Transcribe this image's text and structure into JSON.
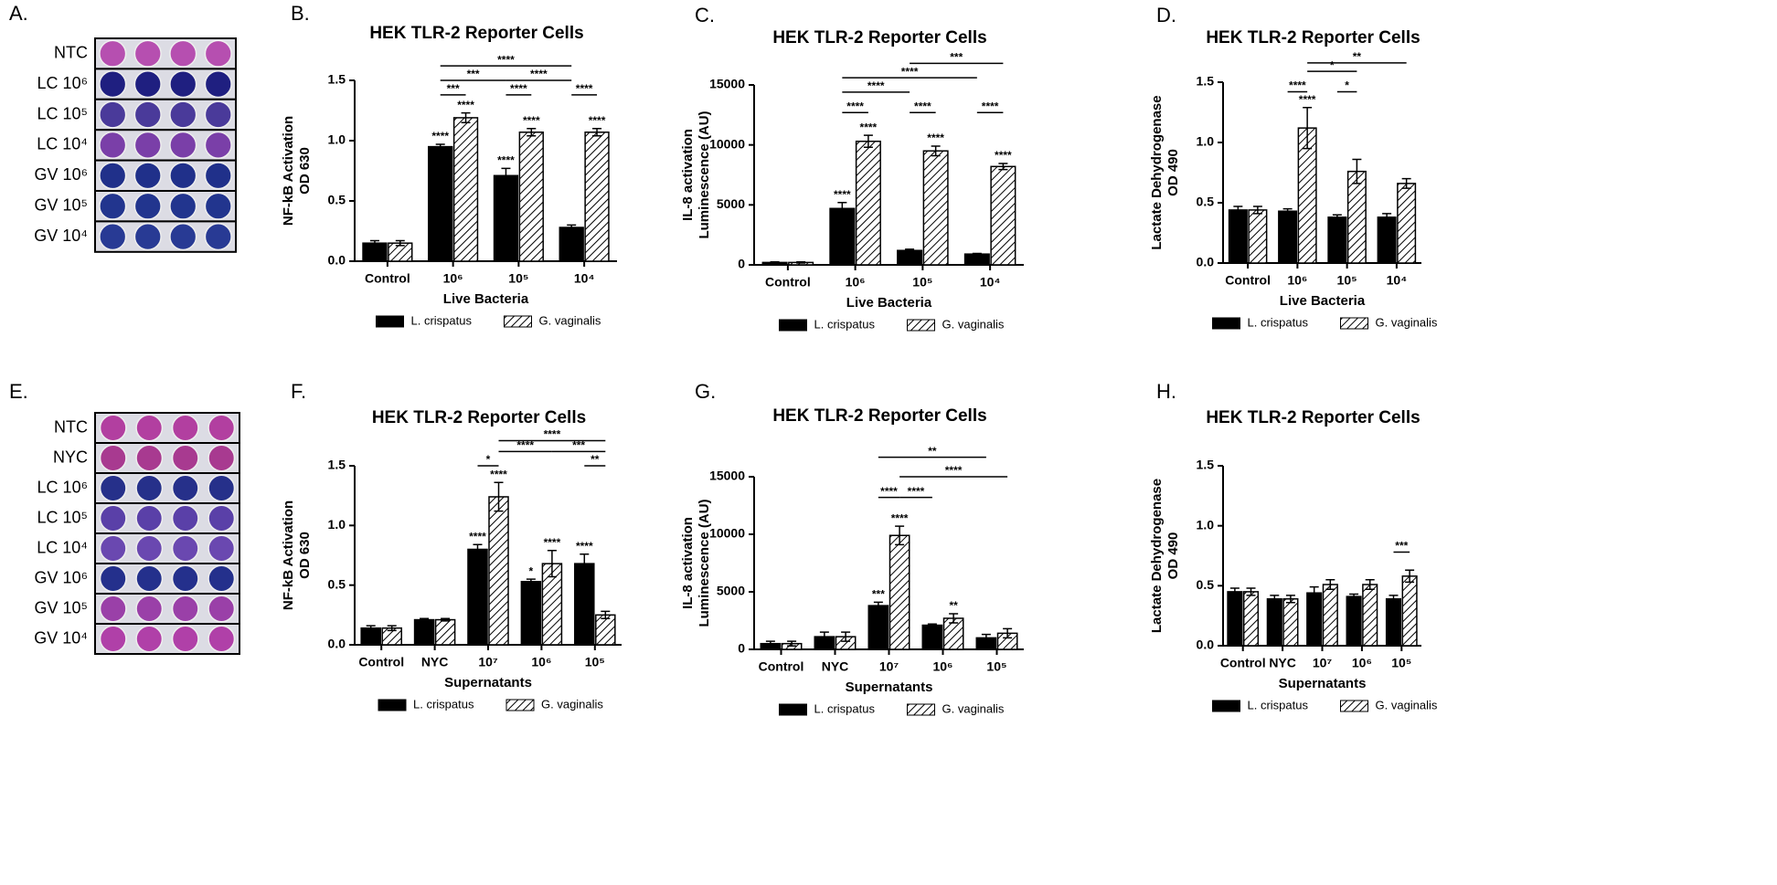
{
  "panel_letters": [
    "A.",
    "B.",
    "C.",
    "D.",
    "E.",
    "F.",
    "G.",
    "H."
  ],
  "well_panels": [
    {
      "rows": [
        {
          "label": "NTC",
          "color": "#b64fb0"
        },
        {
          "label": "LC 10⁶",
          "color": "#1f1f80"
        },
        {
          "label": "LC 10⁵",
          "color": "#4a3a9a"
        },
        {
          "label": "LC 10⁴",
          "color": "#7a3fa8"
        },
        {
          "label": "GV 10⁶",
          "color": "#20308a"
        },
        {
          "label": "GV 10⁵",
          "color": "#22358e"
        },
        {
          "label": "GV 10⁴",
          "color": "#283a94"
        }
      ]
    },
    {
      "rows": [
        {
          "label": "NTC",
          "color": "#b23fa0"
        },
        {
          "label": "NYC",
          "color": "#a83a90"
        },
        {
          "label": "LC 10⁶",
          "color": "#26308a"
        },
        {
          "label": "LC 10⁵",
          "color": "#5a40a8"
        },
        {
          "label": "LC 10⁴",
          "color": "#6a48b0"
        },
        {
          "label": "GV 10⁶",
          "color": "#24308c"
        },
        {
          "label": "GV 10⁵",
          "color": "#9a40a8"
        },
        {
          "label": "GV 10⁴",
          "color": "#b040a8"
        }
      ]
    }
  ],
  "chart_data": [
    {
      "type": "bar",
      "title": "HEK TLR-2 Reporter Cells",
      "xlabel": "Live Bacteria",
      "ylabel": [
        "NF-kB Activation",
        "OD 630"
      ],
      "categories": [
        "Control",
        "10⁶",
        "10⁵",
        "10⁴"
      ],
      "series": [
        {
          "name": "L. crispatus",
          "color": "#000000",
          "values": [
            0.15,
            0.95,
            0.71,
            0.28
          ],
          "errors": [
            0.02,
            0.02,
            0.06,
            0.02
          ],
          "stars": [
            null,
            "****",
            "****",
            null
          ]
        },
        {
          "name": "G. vaginalis",
          "color": "#ffffff",
          "hatch": true,
          "values": [
            0.15,
            1.19,
            1.07,
            1.07
          ],
          "errors": [
            0.02,
            0.04,
            0.03,
            0.03
          ],
          "stars": [
            null,
            "****",
            "****",
            "****"
          ]
        }
      ],
      "brackets": [
        {
          "text": "****",
          "y": 1.62,
          "from": [
            1,
            0
          ],
          "to": [
            3,
            0
          ]
        },
        {
          "text": "***",
          "y": 1.5,
          "from": [
            1,
            0
          ],
          "to": [
            2,
            0
          ]
        },
        {
          "text": "****",
          "y": 1.5,
          "from": [
            2,
            0
          ],
          "to": [
            3,
            0
          ]
        },
        {
          "text": "***",
          "y": 1.38,
          "from": [
            1,
            0
          ],
          "to": [
            1,
            1
          ]
        },
        {
          "text": "****",
          "y": 1.38,
          "from": [
            2,
            0
          ],
          "to": [
            2,
            1
          ]
        },
        {
          "text": "****",
          "y": 1.38,
          "from": [
            3,
            0
          ],
          "to": [
            3,
            1
          ]
        }
      ],
      "ylim": [
        0,
        1.5
      ],
      "yticks": [
        {
          "value": 0,
          "label": "0.0"
        },
        {
          "value": 0.5,
          "label": "0.5"
        },
        {
          "value": 1,
          "label": "1.0"
        },
        {
          "value": 1.5,
          "label": "1.5"
        }
      ]
    },
    {
      "type": "bar",
      "title": "HEK TLR-2 Reporter Cells",
      "xlabel": "Live Bacteria",
      "ylabel": [
        "IL-8 activation",
        "Luminescence (AU)"
      ],
      "categories": [
        "Control",
        "10⁶",
        "10⁵",
        "10⁴"
      ],
      "series": [
        {
          "name": "L. crispatus",
          "color": "#000000",
          "values": [
            200,
            4700,
            1200,
            900
          ],
          "errors": [
            50,
            500,
            100,
            50
          ],
          "stars": [
            null,
            "****",
            null,
            null
          ]
        },
        {
          "name": "G. vaginalis",
          "color": "#ffffff",
          "hatch": true,
          "values": [
            200,
            10300,
            9500,
            8200
          ],
          "errors": [
            50,
            500,
            400,
            250
          ],
          "stars": [
            null,
            "****",
            "****",
            "****"
          ]
        }
      ],
      "brackets": [
        {
          "text": "***",
          "y": 16800,
          "from": [
            2,
            0
          ],
          "to": [
            3,
            1
          ]
        },
        {
          "text": "****",
          "y": 15600,
          "from": [
            1,
            0
          ],
          "to": [
            3,
            0
          ]
        },
        {
          "text": "****",
          "y": 14400,
          "from": [
            1,
            0
          ],
          "to": [
            2,
            0
          ]
        },
        {
          "text": "****",
          "y": 12700,
          "from": [
            1,
            0
          ],
          "to": [
            1,
            1
          ]
        },
        {
          "text": "****",
          "y": 12700,
          "from": [
            2,
            0
          ],
          "to": [
            2,
            1
          ]
        },
        {
          "text": "****",
          "y": 12700,
          "from": [
            3,
            0
          ],
          "to": [
            3,
            1
          ]
        }
      ],
      "ylim": [
        0,
        15000
      ],
      "yticks": [
        0,
        5000,
        10000,
        15000
      ]
    },
    {
      "type": "bar",
      "title": "HEK TLR-2 Reporter Cells",
      "xlabel": "Live Bacteria",
      "ylabel": [
        "Lactate Dehydrogenase",
        "OD 490"
      ],
      "categories": [
        "Control",
        "10⁶",
        "10⁵",
        "10⁴"
      ],
      "series": [
        {
          "name": "L. crispatus",
          "color": "#000000",
          "values": [
            0.44,
            0.43,
            0.38,
            0.38
          ],
          "errors": [
            0.03,
            0.02,
            0.02,
            0.03
          ],
          "stars": [
            null,
            null,
            null,
            null
          ]
        },
        {
          "name": "G. vaginalis",
          "color": "#ffffff",
          "hatch": true,
          "values": [
            0.44,
            1.12,
            0.76,
            0.66
          ],
          "errors": [
            0.03,
            0.17,
            0.1,
            0.04
          ],
          "stars": [
            null,
            "****",
            null,
            null
          ]
        }
      ],
      "brackets": [
        {
          "text": "**",
          "y": 1.66,
          "from": [
            1,
            1
          ],
          "to": [
            3,
            1
          ]
        },
        {
          "text": "*",
          "y": 1.59,
          "from": [
            1,
            1
          ],
          "to": [
            2,
            1
          ]
        },
        {
          "text": "****",
          "y": 1.42,
          "from": [
            1,
            0
          ],
          "to": [
            1,
            1
          ]
        },
        {
          "text": "*",
          "y": 1.42,
          "from": [
            2,
            0
          ],
          "to": [
            2,
            1
          ]
        }
      ],
      "ylim": [
        0,
        1.5
      ],
      "yticks": [
        {
          "value": 0,
          "label": "0.0"
        },
        {
          "value": 0.5,
          "label": "0.5"
        },
        {
          "value": 1,
          "label": "1.0"
        },
        {
          "value": 1.5,
          "label": "1.5"
        }
      ]
    },
    {
      "type": "bar",
      "title": "HEK TLR-2 Reporter Cells",
      "xlabel": "Supernatants",
      "ylabel": [
        "NF-kB Activation",
        "OD 630"
      ],
      "categories": [
        "Control",
        "NYC",
        "10⁷",
        "10⁶",
        "10⁵"
      ],
      "series": [
        {
          "name": "L. crispatus",
          "color": "#000000",
          "values": [
            0.14,
            0.21,
            0.8,
            0.53,
            0.68
          ],
          "errors": [
            0.02,
            0.01,
            0.04,
            0.02,
            0.08
          ],
          "stars": [
            null,
            null,
            "****",
            "*",
            "****"
          ]
        },
        {
          "name": "G. vaginalis",
          "color": "#ffffff",
          "hatch": true,
          "values": [
            0.14,
            0.21,
            1.24,
            0.68,
            0.25
          ],
          "errors": [
            0.02,
            0.01,
            0.12,
            0.11,
            0.03
          ],
          "stars": [
            null,
            null,
            "****",
            "****",
            null
          ]
        }
      ],
      "brackets": [
        {
          "text": "****",
          "y": 1.71,
          "from": [
            2,
            1
          ],
          "to": [
            4,
            1
          ]
        },
        {
          "text": "****",
          "y": 1.62,
          "from": [
            2,
            1
          ],
          "to": [
            3,
            1
          ]
        },
        {
          "text": "***",
          "y": 1.62,
          "from": [
            3,
            1
          ],
          "to": [
            4,
            1
          ]
        },
        {
          "text": "*",
          "y": 1.5,
          "from": [
            2,
            0
          ],
          "to": [
            2,
            1
          ]
        },
        {
          "text": "**",
          "y": 1.5,
          "from": [
            4,
            0
          ],
          "to": [
            4,
            1
          ]
        }
      ],
      "ylim": [
        0,
        1.5
      ],
      "yticks": [
        {
          "value": 0,
          "label": "0.0"
        },
        {
          "value": 0.5,
          "label": "0.5"
        },
        {
          "value": 1,
          "label": "1.0"
        },
        {
          "value": 1.5,
          "label": "1.5"
        }
      ]
    },
    {
      "type": "bar",
      "title": "HEK TLR-2 Reporter Cells",
      "xlabel": "Supernatants",
      "ylabel": [
        "IL-8 activation",
        "Luminescence (AU)"
      ],
      "categories": [
        "Control",
        "NYC",
        "10⁷",
        "10⁶",
        "10⁵"
      ],
      "series": [
        {
          "name": "L. crispatus",
          "color": "#000000",
          "values": [
            500,
            1100,
            3800,
            2100,
            1000
          ],
          "errors": [
            200,
            400,
            300,
            100,
            300
          ],
          "stars": [
            null,
            null,
            "***",
            null,
            null
          ]
        },
        {
          "name": "G. vaginalis",
          "color": "#ffffff",
          "hatch": true,
          "values": [
            500,
            1100,
            9900,
            2700,
            1400
          ],
          "errors": [
            200,
            400,
            800,
            400,
            400
          ],
          "stars": [
            null,
            null,
            "****",
            "**",
            null
          ]
        }
      ],
      "brackets": [
        {
          "text": "**",
          "y": 16700,
          "from": [
            2,
            0
          ],
          "to": [
            4,
            0
          ]
        },
        {
          "text": "****",
          "y": 15000,
          "from": [
            2,
            1
          ],
          "to": [
            4,
            1
          ]
        },
        {
          "text": "****",
          "y": 13200,
          "from": [
            2,
            0
          ],
          "to": [
            2,
            1
          ]
        },
        {
          "text": "****",
          "y": 13200,
          "from": [
            2,
            1
          ],
          "to": [
            3,
            0
          ]
        }
      ],
      "ylim": [
        0,
        15000
      ],
      "yticks": [
        0,
        5000,
        10000,
        15000
      ]
    },
    {
      "type": "bar",
      "title": "HEK TLR-2 Reporter Cells",
      "xlabel": "Supernatants",
      "ylabel": [
        "Lactate Dehydrogenase",
        "OD 490"
      ],
      "categories": [
        "Control",
        "NYC",
        "10⁷",
        "10⁶",
        "10⁵"
      ],
      "series": [
        {
          "name": "L. crispatus",
          "color": "#000000",
          "values": [
            0.45,
            0.39,
            0.44,
            0.41,
            0.39
          ],
          "errors": [
            0.03,
            0.03,
            0.05,
            0.02,
            0.03
          ],
          "stars": [
            null,
            null,
            null,
            null,
            null
          ]
        },
        {
          "name": "G. vaginalis",
          "color": "#ffffff",
          "hatch": true,
          "values": [
            0.45,
            0.39,
            0.51,
            0.51,
            0.58
          ],
          "errors": [
            0.03,
            0.03,
            0.04,
            0.04,
            0.05
          ],
          "stars": [
            null,
            null,
            null,
            null,
            null
          ]
        }
      ],
      "brackets": [
        {
          "text": "***",
          "y": 0.78,
          "from": [
            4,
            0
          ],
          "to": [
            4,
            1
          ]
        }
      ],
      "ylim": [
        0,
        1.5
      ],
      "yticks": [
        {
          "value": 0,
          "label": "0.0"
        },
        {
          "value": 0.5,
          "label": "0.5"
        },
        {
          "value": 1,
          "label": "1.0"
        },
        {
          "value": 1.5,
          "label": "1.5"
        }
      ]
    }
  ]
}
